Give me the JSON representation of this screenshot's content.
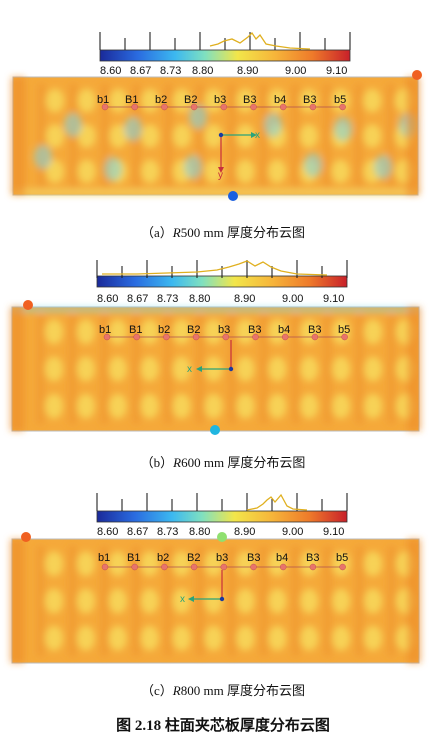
{
  "colorbar": {
    "ticks": [
      "8.60",
      "8.67",
      "8.73",
      "8.80",
      "8.90",
      "9.00",
      "9.10"
    ]
  },
  "point_labels": [
    "b1",
    "B1",
    "b2",
    "B2",
    "b3",
    "B3",
    "b4",
    "B3",
    "b5"
  ],
  "axes": {
    "x": "x",
    "y": "y"
  },
  "panels": [
    {
      "id": "a",
      "caption_prefix": "（a）",
      "caption_r": "R",
      "caption_rest": "500 mm 厚度分布云图"
    },
    {
      "id": "b",
      "caption_prefix": "（b）",
      "caption_r": "R",
      "caption_rest": "600 mm 厚度分布云图"
    },
    {
      "id": "c",
      "caption_prefix": "（c）",
      "caption_r": "R",
      "caption_rest": "800 mm 厚度分布云图"
    }
  ],
  "figure_title": "图 2.18  柱面夹芯板厚度分布云图",
  "colors": {
    "base_orange": "#f5a93a",
    "light_yellow": "#f7d65a",
    "cyan": "#7ed6e6",
    "marker": "#e8746a",
    "axis_green": "#2aa37a",
    "axis_red": "#c8303c",
    "point_blue": "#1a4fd6"
  }
}
